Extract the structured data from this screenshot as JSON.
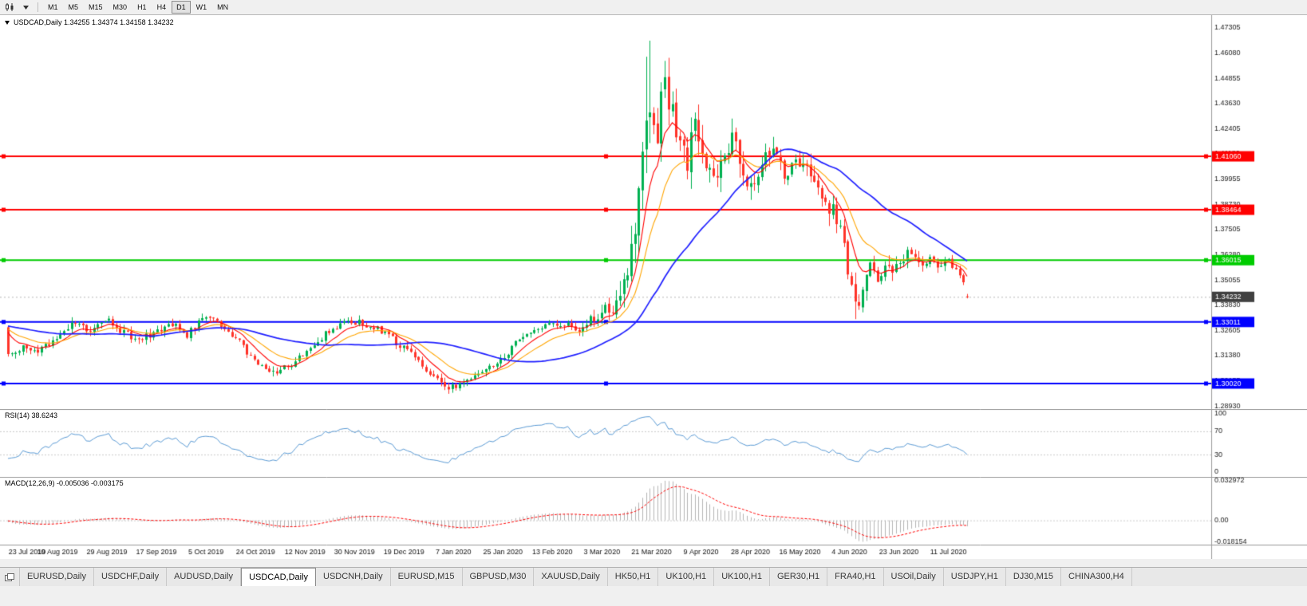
{
  "toolbar": {
    "timeframes": [
      {
        "label": "M1",
        "active": false
      },
      {
        "label": "M5",
        "active": false
      },
      {
        "label": "M15",
        "active": false
      },
      {
        "label": "M30",
        "active": false
      },
      {
        "label": "H1",
        "active": false
      },
      {
        "label": "H4",
        "active": false
      },
      {
        "label": "D1",
        "active": true
      },
      {
        "label": "W1",
        "active": false
      },
      {
        "label": "MN",
        "active": false
      }
    ]
  },
  "price_panel": {
    "ohlc_line": "USDCAD,Daily 1.34255 1.34374 1.34158 1.34232"
  },
  "rsi_panel": {
    "label": "RSI(14) 38.6243"
  },
  "macd_panel": {
    "label": "MACD(12,26,9) -0.005036 -0.003175"
  },
  "chart_data": {
    "type": "candlestick",
    "symbol": "USDCAD",
    "timeframe": "Daily",
    "ohlc": {
      "open": 1.34255,
      "high": 1.34374,
      "low": 1.34158,
      "close": 1.34232
    },
    "n_candles": 258,
    "y_range": [
      1.2878,
      1.4792
    ],
    "y_axis_labels": [
      "1.47305",
      "1.46080",
      "1.44855",
      "1.43630",
      "1.42405",
      "1.41180",
      "1.39955",
      "1.38730",
      "1.37505",
      "1.36280",
      "1.35055",
      "1.33830",
      "1.32605",
      "1.31380",
      "1.30155",
      "1.28930"
    ],
    "x_labels": [
      "23 Jul 2019",
      "10 Aug 2019",
      "29 Aug 2019",
      "17 Sep 2019",
      "5 Oct 2019",
      "24 Oct 2019",
      "12 Nov 2019",
      "30 Nov 2019",
      "19 Dec 2019",
      "7 Jan 2020",
      "25 Jan 2020",
      "13 Feb 2020",
      "3 Mar 2020",
      "21 Mar 2020",
      "9 Apr 2020",
      "28 Apr 2020",
      "16 May 2020",
      "4 Jun 2020",
      "23 Jun 2020",
      "11 Jul 2020"
    ],
    "label_step": 13.263,
    "price_anchors": [
      [
        0,
        1.3135
      ],
      [
        4,
        1.3185
      ],
      [
        8,
        1.3165
      ],
      [
        13,
        1.3225
      ],
      [
        17,
        1.33
      ],
      [
        21,
        1.3255
      ],
      [
        25,
        1.329
      ],
      [
        27,
        1.332
      ],
      [
        31,
        1.3245
      ],
      [
        35,
        1.3225
      ],
      [
        40,
        1.3255
      ],
      [
        44,
        1.329
      ],
      [
        48,
        1.324
      ],
      [
        53,
        1.3325
      ],
      [
        57,
        1.329
      ],
      [
        61,
        1.322
      ],
      [
        66,
        1.312
      ],
      [
        71,
        1.306
      ],
      [
        75,
        1.308
      ],
      [
        80,
        1.316
      ],
      [
        85,
        1.324
      ],
      [
        89,
        1.3285
      ],
      [
        93,
        1.33
      ],
      [
        97,
        1.3285
      ],
      [
        101,
        1.3245
      ],
      [
        106,
        1.3175
      ],
      [
        110,
        1.311
      ],
      [
        114,
        1.304
      ],
      [
        118,
        1.2975
      ],
      [
        121,
        1.2995
      ],
      [
        124,
        1.3035
      ],
      [
        128,
        1.3065
      ],
      [
        133,
        1.313
      ],
      [
        137,
        1.3215
      ],
      [
        141,
        1.327
      ],
      [
        146,
        1.33
      ],
      [
        150,
        1.3285
      ],
      [
        153,
        1.3255
      ],
      [
        156,
        1.331
      ],
      [
        159,
        1.3345
      ],
      [
        162,
        1.338
      ],
      [
        164,
        1.342
      ],
      [
        166,
        1.356
      ],
      [
        168,
        1.372
      ],
      [
        170,
        1.405
      ],
      [
        172,
        1.438
      ],
      [
        174,
        1.425
      ],
      [
        176,
        1.448
      ],
      [
        178,
        1.432
      ],
      [
        180,
        1.415
      ],
      [
        182,
        1.409
      ],
      [
        184,
        1.424
      ],
      [
        186,
        1.413
      ],
      [
        188,
        1.403
      ],
      [
        190,
        1.398
      ],
      [
        192,
        1.41
      ],
      [
        194,
        1.423
      ],
      [
        196,
        1.409
      ],
      [
        199,
        1.396
      ],
      [
        202,
        1.406
      ],
      [
        205,
        1.413
      ],
      [
        208,
        1.402
      ],
      [
        212,
        1.409
      ],
      [
        215,
        1.399
      ],
      [
        218,
        1.391
      ],
      [
        221,
        1.384
      ],
      [
        223,
        1.376
      ],
      [
        225,
        1.356
      ],
      [
        227,
        1.339
      ],
      [
        229,
        1.343
      ],
      [
        231,
        1.356
      ],
      [
        233,
        1.35
      ],
      [
        235,
        1.359
      ],
      [
        237,
        1.3545
      ],
      [
        239,
        1.359
      ],
      [
        241,
        1.365
      ],
      [
        243,
        1.362
      ],
      [
        245,
        1.3575
      ],
      [
        247,
        1.3605
      ],
      [
        249,
        1.357
      ],
      [
        252,
        1.36
      ],
      [
        254,
        1.356
      ],
      [
        256,
        1.349
      ],
      [
        257,
        1.3423
      ]
    ],
    "volatility_anchors": [
      [
        0,
        0.0035
      ],
      [
        60,
        0.0032
      ],
      [
        100,
        0.003
      ],
      [
        118,
        0.0028
      ],
      [
        140,
        0.0028
      ],
      [
        155,
        0.0035
      ],
      [
        160,
        0.006
      ],
      [
        166,
        0.011
      ],
      [
        170,
        0.015
      ],
      [
        172,
        0.017
      ],
      [
        176,
        0.013
      ],
      [
        182,
        0.011
      ],
      [
        190,
        0.009
      ],
      [
        200,
        0.008
      ],
      [
        212,
        0.007
      ],
      [
        222,
        0.008
      ],
      [
        227,
        0.0095
      ],
      [
        231,
        0.007
      ],
      [
        240,
        0.005
      ],
      [
        250,
        0.004
      ],
      [
        257,
        0.0022
      ]
    ],
    "forced_highs": [
      [
        171,
        1.459
      ],
      [
        172,
        1.4668
      ],
      [
        176,
        1.456
      ]
    ],
    "forced_lows": [
      [
        118,
        1.2952
      ],
      [
        227,
        1.3315
      ]
    ],
    "final_ohlc": [
      1.34255,
      1.34374,
      1.34158,
      1.34232
    ],
    "up_color": "#00b050",
    "down_color": "#ff3228",
    "moving_averages": [
      {
        "type": "ema",
        "period": 8,
        "color": "#ff0000",
        "width": 1.1
      },
      {
        "type": "ema",
        "period": 17,
        "color": "#ffa500",
        "width": 1.1
      },
      {
        "type": "sma",
        "period": 40,
        "color": "#1f1fff",
        "width": 1.7
      }
    ],
    "h_lines": [
      {
        "price": 1.4106,
        "label": "1.41060",
        "color": "#ff0000",
        "width": 2
      },
      {
        "price": 1.38464,
        "label": "1.38464",
        "color": "#ff0000",
        "width": 2
      },
      {
        "price": 1.36015,
        "label": "1.36015",
        "color": "#00cc00",
        "width": 2
      },
      {
        "price": 1.33011,
        "label": "1.33011",
        "color": "#0000ff",
        "width": 2
      },
      {
        "price": 1.3002,
        "label": "1.30020",
        "color": "#0000ff",
        "width": 2
      }
    ],
    "current_price": {
      "value": 1.34232,
      "label": "1.34232",
      "color": "#404040"
    },
    "rsi": {
      "period": 14,
      "value": 38.6243,
      "levels": [
        100,
        70,
        30,
        0
      ],
      "dashed_levels": [
        70,
        30
      ],
      "color": "#5b9bd5"
    },
    "macd": {
      "fast": 12,
      "slow": 26,
      "signal_period": 9,
      "main_value": -0.005036,
      "signal_value": -0.003175,
      "range": [
        -0.0202,
        0.0363
      ],
      "axis_labels": [
        {
          "value": 0.032972,
          "label": "0.032972"
        },
        {
          "value": 0,
          "label": "0.00"
        },
        {
          "value": -0.018154,
          "label": "-0.018154"
        }
      ],
      "hist_color": "#b5b5b5",
      "signal_color": "#ff0000"
    }
  },
  "tabs": {
    "items": [
      {
        "label": "EURUSD,Daily",
        "active": false
      },
      {
        "label": "USDCHF,Daily",
        "active": false
      },
      {
        "label": "AUDUSD,Daily",
        "active": false
      },
      {
        "label": "USDCAD,Daily",
        "active": true
      },
      {
        "label": "USDCNH,Daily",
        "active": false
      },
      {
        "label": "EURUSD,M15",
        "active": false
      },
      {
        "label": "GBPUSD,M30",
        "active": false
      },
      {
        "label": "XAUUSD,Daily",
        "active": false
      },
      {
        "label": "HK50,H1",
        "active": false
      },
      {
        "label": "UK100,H1",
        "active": false
      },
      {
        "label": "UK100,H1",
        "active": false
      },
      {
        "label": "GER30,H1",
        "active": false
      },
      {
        "label": "FRA40,H1",
        "active": false
      },
      {
        "label": "USOil,Daily",
        "active": false
      },
      {
        "label": "USDJPY,H1",
        "active": false
      },
      {
        "label": "DJ30,M15",
        "active": false
      },
      {
        "label": "CHINA300,H4",
        "active": false
      }
    ]
  }
}
